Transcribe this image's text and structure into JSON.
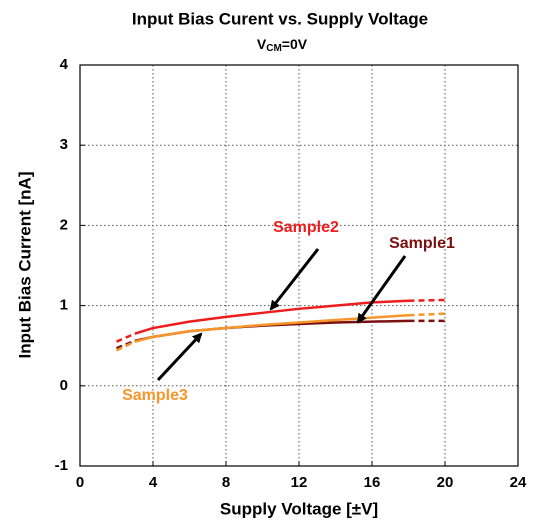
{
  "chart_data": {
    "type": "line",
    "title": "Input Bias Curent vs. Supply Voltage",
    "subtitle": [
      "V",
      "CM",
      "=0V"
    ],
    "xlabel": "Supply Voltage [±V]",
    "ylabel": "Input Bias Current [nA]",
    "x": [
      2,
      3,
      4,
      6,
      8,
      10,
      12,
      14,
      16,
      18,
      20
    ],
    "solid_xlim": [
      3,
      18
    ],
    "series": [
      {
        "name": "Sample1",
        "color": "#7b1010",
        "values": [
          0.47,
          0.56,
          0.61,
          0.68,
          0.72,
          0.75,
          0.77,
          0.79,
          0.8,
          0.81,
          0.81
        ]
      },
      {
        "name": "Sample2",
        "color": "#ee1c1c",
        "values": [
          0.55,
          0.65,
          0.72,
          0.8,
          0.86,
          0.91,
          0.96,
          1.0,
          1.04,
          1.06,
          1.07
        ]
      },
      {
        "name": "Sample3",
        "color": "#f7962a",
        "values": [
          0.44,
          0.55,
          0.61,
          0.68,
          0.72,
          0.76,
          0.79,
          0.82,
          0.85,
          0.88,
          0.9
        ]
      }
    ],
    "xlim": [
      0,
      24
    ],
    "xticks": [
      0,
      4,
      8,
      12,
      16,
      20,
      24
    ],
    "ylim": [
      -1,
      4
    ],
    "yticks": [
      -1,
      0,
      1,
      2,
      3,
      4
    ],
    "grid": true
  }
}
